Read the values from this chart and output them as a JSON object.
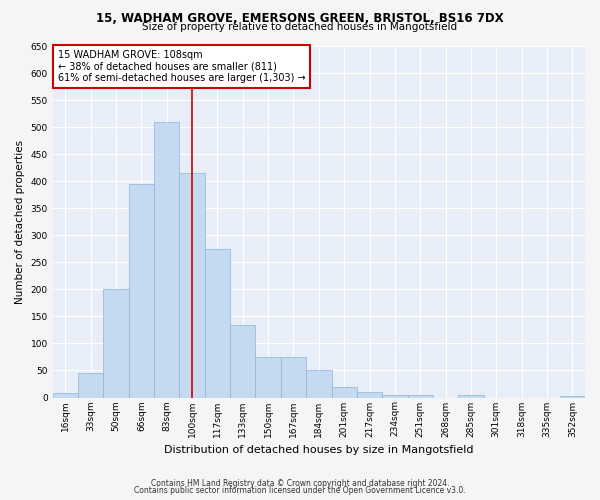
{
  "title1": "15, WADHAM GROVE, EMERSONS GREEN, BRISTOL, BS16 7DX",
  "title2": "Size of property relative to detached houses in Mangotsfield",
  "xlabel": "Distribution of detached houses by size in Mangotsfield",
  "ylabel": "Number of detached properties",
  "footer1": "Contains HM Land Registry data © Crown copyright and database right 2024.",
  "footer2": "Contains public sector information licensed under the Open Government Licence v3.0.",
  "annotation_title": "15 WADHAM GROVE: 108sqm",
  "annotation_line1": "← 38% of detached houses are smaller (811)",
  "annotation_line2": "61% of semi-detached houses are larger (1,303) →",
  "property_size_bin": 5,
  "bar_color": "#c5d9f0",
  "bar_edge_color": "#8ab4d9",
  "vline_color": "#cc0000",
  "annotation_box_color": "#cc0000",
  "background_color": "#e8eef7",
  "grid_color": "#ffffff",
  "fig_bg_color": "#f5f5f5",
  "categories": [
    "16sqm",
    "33sqm",
    "50sqm",
    "66sqm",
    "83sqm",
    "100sqm",
    "117sqm",
    "133sqm",
    "150sqm",
    "167sqm",
    "184sqm",
    "201sqm",
    "217sqm",
    "234sqm",
    "251sqm",
    "268sqm",
    "285sqm",
    "301sqm",
    "318sqm",
    "335sqm",
    "352sqm"
  ],
  "values": [
    8,
    45,
    200,
    395,
    510,
    415,
    275,
    135,
    75,
    75,
    50,
    20,
    10,
    5,
    5,
    0,
    5,
    0,
    0,
    0,
    2
  ],
  "ylim": [
    0,
    650
  ],
  "yticks": [
    0,
    50,
    100,
    150,
    200,
    250,
    300,
    350,
    400,
    450,
    500,
    550,
    600,
    650
  ],
  "title1_fontsize": 8.5,
  "title2_fontsize": 7.5,
  "xlabel_fontsize": 8,
  "ylabel_fontsize": 7.5,
  "tick_fontsize": 6.5,
  "footer_fontsize": 5.5,
  "annot_fontsize": 7
}
